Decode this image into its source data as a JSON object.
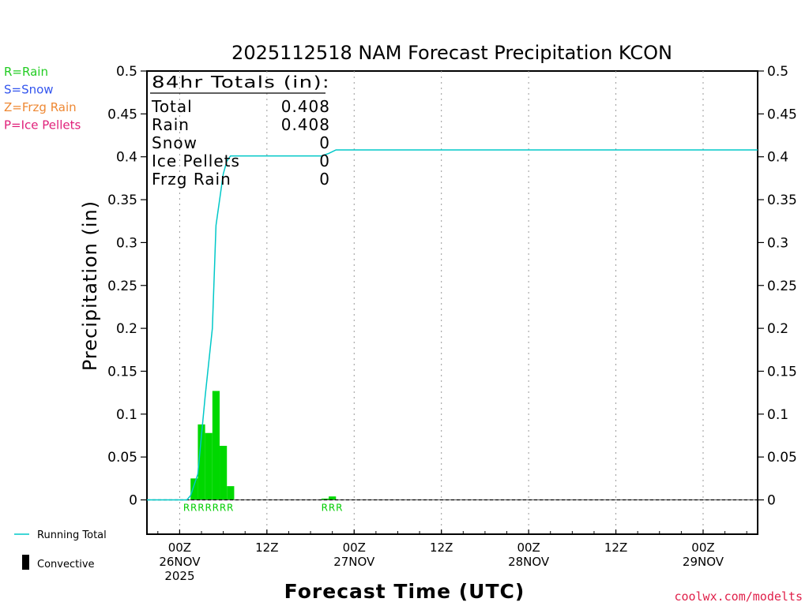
{
  "chart_data": {
    "type": "bar",
    "title": "2025112518 NAM Forecast Precipitation KCON",
    "ylabel": "Precipitation (in)",
    "xlabel": "Forecast Time (UTC)",
    "ylim": [
      -0.04,
      0.5
    ],
    "xlim_hours": [
      -4.5,
      79.5
    ],
    "y_ticks": [
      "0",
      "0.05",
      "0.1",
      "0.15",
      "0.2",
      "0.25",
      "0.3",
      "0.35",
      "0.4",
      "0.45",
      "0.5"
    ],
    "x_ticks": [
      {
        "hour": 0,
        "line1": "00Z",
        "line2": "26NOV",
        "line3": "2025"
      },
      {
        "hour": 12,
        "line1": "12Z",
        "line2": "",
        "line3": ""
      },
      {
        "hour": 24,
        "line1": "00Z",
        "line2": "27NOV",
        "line3": ""
      },
      {
        "hour": 36,
        "line1": "12Z",
        "line2": "",
        "line3": ""
      },
      {
        "hour": 48,
        "line1": "00Z",
        "line2": "28NOV",
        "line3": ""
      },
      {
        "hour": 60,
        "line1": "12Z",
        "line2": "",
        "line3": ""
      },
      {
        "hour": 72,
        "line1": "00Z",
        "line2": "29NOV",
        "line3": ""
      }
    ],
    "bar_color": "#00d800",
    "bars": [
      {
        "start": 1.5,
        "end": 2.5,
        "value": 0.0
      },
      {
        "start": 1.5,
        "end": 2.5,
        "value": 0.025
      },
      {
        "start": 2.5,
        "end": 3.5,
        "value": 0.088
      },
      {
        "start": 3.5,
        "end": 4.5,
        "value": 0.078
      },
      {
        "start": 4.5,
        "end": 5.5,
        "value": 0.127
      },
      {
        "start": 5.5,
        "end": 6.5,
        "value": 0.063
      },
      {
        "start": 6.5,
        "end": 7.5,
        "value": 0.016
      },
      {
        "start": 19.5,
        "end": 20.5,
        "value": 0.0015
      },
      {
        "start": 20.5,
        "end": 21.5,
        "value": 0.004
      }
    ],
    "precip_type_labels": [
      {
        "hour": 0.5,
        "text": "R"
      },
      {
        "hour": 1.5,
        "text": "R"
      },
      {
        "hour": 2.5,
        "text": "R"
      },
      {
        "hour": 3.5,
        "text": "R"
      },
      {
        "hour": 4.5,
        "text": "R"
      },
      {
        "hour": 5.5,
        "text": "R"
      },
      {
        "hour": 6.5,
        "text": "R"
      },
      {
        "hour": 19.5,
        "text": "R"
      },
      {
        "hour": 20.5,
        "text": "R"
      },
      {
        "hour": 21.5,
        "text": "R"
      }
    ],
    "running_total": {
      "name": "Running Total",
      "color": "#00c8c8",
      "points": [
        [
          -4.5,
          0
        ],
        [
          0,
          0
        ],
        [
          1,
          0.0
        ],
        [
          1.5,
          0.005
        ],
        [
          2.5,
          0.03
        ],
        [
          3.5,
          0.12
        ],
        [
          4.5,
          0.2
        ],
        [
          5,
          0.32
        ],
        [
          6,
          0.38
        ],
        [
          6.5,
          0.395
        ],
        [
          7,
          0.401
        ],
        [
          9,
          0.401
        ],
        [
          12,
          0.401
        ],
        [
          16,
          0.401
        ],
        [
          19.5,
          0.401
        ],
        [
          20.5,
          0.404
        ],
        [
          21.5,
          0.408
        ],
        [
          30,
          0.408
        ],
        [
          50,
          0.408
        ],
        [
          79.5,
          0.408
        ]
      ]
    },
    "totals_box": {
      "header": "84hr Totals (in):",
      "rows": [
        {
          "label": "Total",
          "value": "0.408"
        },
        {
          "label": "Rain",
          "value": "0.408"
        },
        {
          "label": "Snow",
          "value": "0"
        },
        {
          "label": "Ice Pellets",
          "value": "0"
        },
        {
          "label": "Frzg Rain",
          "value": "0"
        }
      ]
    },
    "type_legend": [
      {
        "text": "R=Rain",
        "color": "#22cc22"
      },
      {
        "text": "S=Snow",
        "color": "#3355ee"
      },
      {
        "text": "Z=Frzg Rain",
        "color": "#ee8833"
      },
      {
        "text": "P=Ice Pellets",
        "color": "#e0207a"
      }
    ],
    "bottom_legend": {
      "running_total": "Running Total",
      "convective": "Convective"
    },
    "credit": "coolwx.com/modelts"
  }
}
